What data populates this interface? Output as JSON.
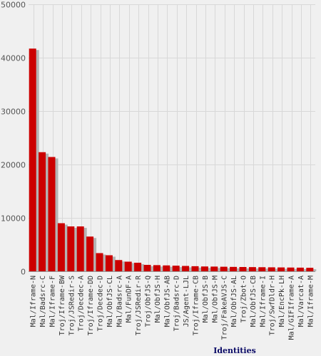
{
  "chart_data": {
    "type": "bar",
    "title": "",
    "xlabel": "Identities",
    "ylabel": "",
    "ylim": [
      0,
      50000
    ],
    "yticks": [
      0,
      10000,
      20000,
      30000,
      40000,
      50000
    ],
    "ytick_labels": [
      "0",
      "10000",
      "20000",
      "30000",
      "40000",
      "50000"
    ],
    "grid": true,
    "legend": "none",
    "categories": [
      "Mal/Iframe-N",
      "Mal/Badsrc-C",
      "Mal/Iframe-F",
      "Troj/Iframe-BW",
      "Troj/JSRedir-S",
      "Troj/Decdec-A",
      "Troj/Iframe-DD",
      "Troj/Decdec-D",
      "Mal/ObfJS-CL",
      "Mal/Badsrc-A",
      "Mal/FunDF-A",
      "Troj/JSRedir-R",
      "Troj/ObfJS-Q",
      "Mal/ObfJS-H",
      "Mal/ObfJS-AB",
      "Troj/Badsrc-D",
      "JS/Agent-LJL",
      "Troj/Iframe-CB",
      "Mal/ObfJS-B",
      "Mal/ObfJS-M",
      "Troj/FakeAVJS-C",
      "Mal/ObfJS-AL",
      "Troj/Zbot-O",
      "Mal/ObfJS-CB",
      "Mal/Iframe-I",
      "Troj/SwfDldr-H",
      "Mal/EncPk-LH",
      "Mal/GIFIframe-A",
      "Mal/Varcat-A",
      "Mal/Iframe-M"
    ],
    "values": [
      41700,
      22300,
      21400,
      9000,
      8400,
      8400,
      6500,
      3400,
      3000,
      2100,
      1800,
      1600,
      1200,
      1150,
      1100,
      1050,
      1000,
      950,
      900,
      880,
      850,
      820,
      800,
      780,
      760,
      740,
      720,
      700,
      680,
      650
    ],
    "colors": {
      "bar": "#cc0000",
      "shadow": "#b4b4b4",
      "background": "#f0f0f0",
      "grid": "#d8d8d8",
      "xlabel": "#0a0a66"
    }
  }
}
